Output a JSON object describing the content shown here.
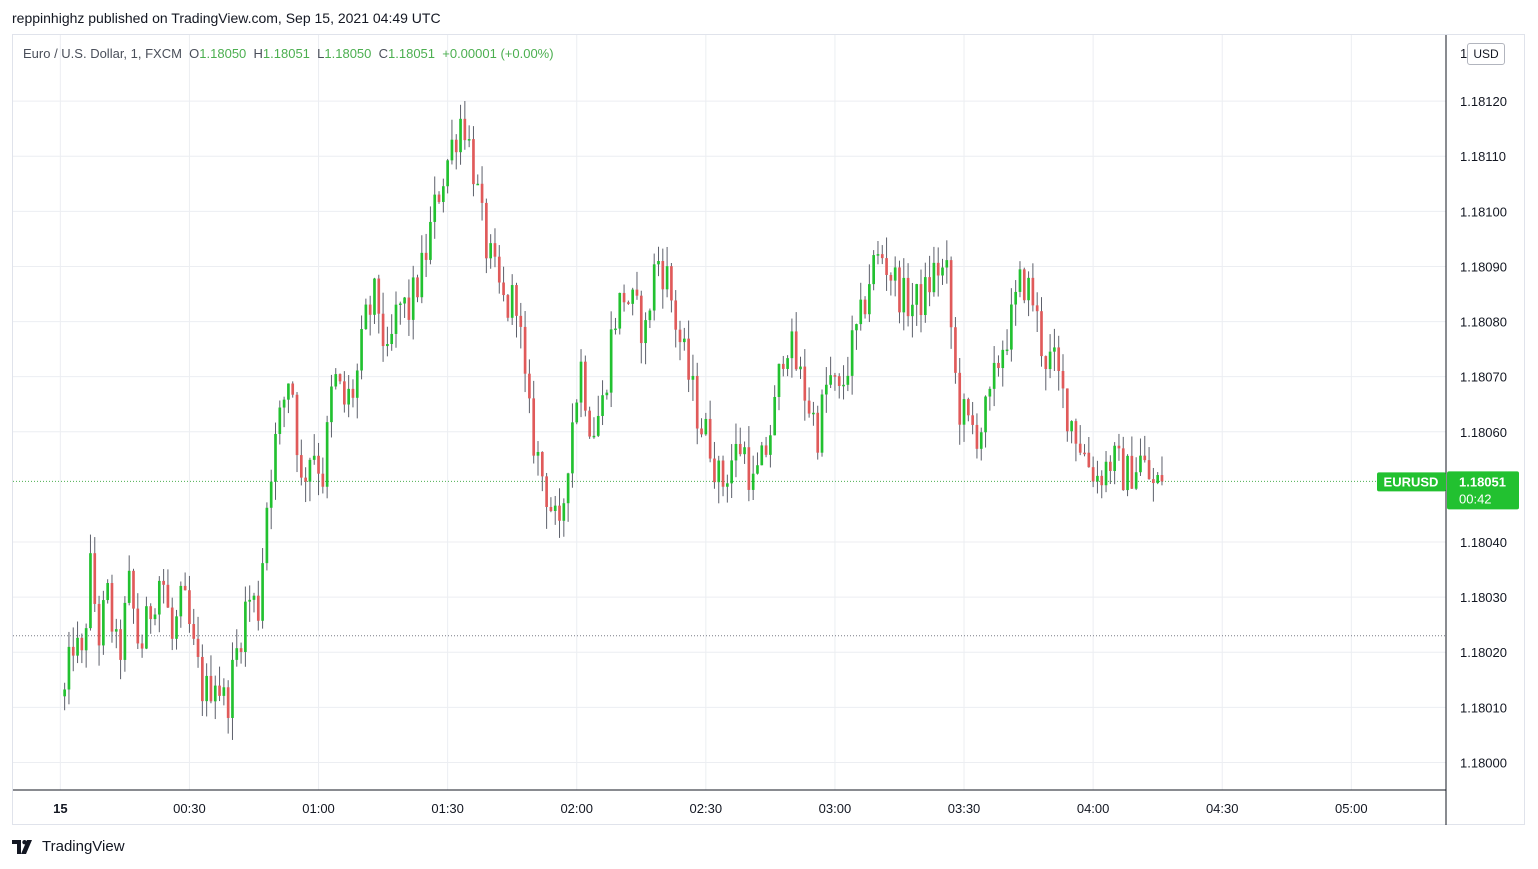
{
  "header": {
    "publisher_line": "reppinhighz published on TradingView.com, Sep 15, 2021 04:49 UTC"
  },
  "legend": {
    "symbol": "Euro / U.S. Dollar, 1, FXCM",
    "open_label": "O",
    "open": "1.18050",
    "high_label": "H",
    "high": "1.18051",
    "low_label": "L",
    "low": "1.18050",
    "close_label": "C",
    "close": "1.18051",
    "change": "+0.00001 (+0.00%)"
  },
  "currency_badge": "USD",
  "top_axis_partial_label": "1",
  "price_tag": {
    "symbol": "EURUSD",
    "price": "1.18051",
    "countdown": "00:42",
    "color": "#22c130"
  },
  "footer": {
    "brand": "TradingView"
  },
  "colors": {
    "up": "#22c130",
    "down": "#e05a5a",
    "grid": "#eceef2",
    "last_price_line": "#4caf50",
    "prev_close_line": "#787b86"
  },
  "chart_data": {
    "type": "candlestick",
    "symbol": "EURUSD",
    "interval": "1",
    "x_tick_labels": [
      "15",
      "00:30",
      "01:00",
      "01:30",
      "02:00",
      "02:30",
      "03:00",
      "03:30",
      "04:00",
      "04:30",
      "05:00"
    ],
    "y_tick_labels": [
      "1.18000",
      "1.18010",
      "1.18020",
      "1.18030",
      "1.18040",
      "1.18060",
      "1.18070",
      "1.18080",
      "1.18090",
      "1.18100",
      "1.18110",
      "1.18120"
    ],
    "y_range": [
      1.17995,
      1.18132
    ],
    "x_range_minutes": [
      -11,
      322
    ],
    "last_price": 1.18051,
    "previous_close_level": 1.18023,
    "grid": true,
    "segments": [
      {
        "from_minute": 0,
        "to_minute": 10,
        "points": [
          1.18012,
          1.18022,
          1.18018,
          1.18035,
          1.18023,
          1.1803
        ]
      },
      {
        "from_minute": 10,
        "to_minute": 20,
        "points": [
          1.1803,
          1.18018,
          1.18032,
          1.1802,
          1.18028
        ]
      },
      {
        "from_minute": 20,
        "to_minute": 30,
        "points": [
          1.18028,
          1.18035,
          1.18022,
          1.1803,
          1.1802
        ]
      },
      {
        "from_minute": 30,
        "to_minute": 40,
        "points": [
          1.1802,
          1.18012,
          1.18016,
          1.1801,
          1.1802
        ]
      },
      {
        "from_minute": 40,
        "to_minute": 50,
        "points": [
          1.1802,
          1.1803,
          1.18028,
          1.18052,
          1.18062
        ]
      },
      {
        "from_minute": 50,
        "to_minute": 60,
        "points": [
          1.18062,
          1.18072,
          1.1805,
          1.18058,
          1.18052
        ]
      },
      {
        "from_minute": 60,
        "to_minute": 70,
        "points": [
          1.18052,
          1.1807,
          1.18065,
          1.18068,
          1.1808
        ]
      },
      {
        "from_minute": 70,
        "to_minute": 80,
        "points": [
          1.1808,
          1.18085,
          1.18072,
          1.18083,
          1.18082
        ]
      },
      {
        "from_minute": 80,
        "to_minute": 90,
        "points": [
          1.18082,
          1.1809,
          1.18103,
          1.18112
        ]
      },
      {
        "from_minute": 90,
        "to_minute": 100,
        "points": [
          1.18112,
          1.18118,
          1.18108,
          1.18095,
          1.18088
        ]
      },
      {
        "from_minute": 100,
        "to_minute": 110,
        "points": [
          1.18088,
          1.18082,
          1.18085,
          1.18064,
          1.18055
        ]
      },
      {
        "from_minute": 110,
        "to_minute": 120,
        "points": [
          1.18055,
          1.18048,
          1.1804,
          1.1806,
          1.18072
        ]
      },
      {
        "from_minute": 120,
        "to_minute": 130,
        "points": [
          1.18072,
          1.1806,
          1.18065,
          1.1808,
          1.18085
        ]
      },
      {
        "from_minute": 130,
        "to_minute": 140,
        "points": [
          1.18085,
          1.18082,
          1.18078,
          1.18092,
          1.18088
        ]
      },
      {
        "from_minute": 140,
        "to_minute": 150,
        "points": [
          1.18088,
          1.18078,
          1.1807,
          1.18062,
          1.18058
        ]
      },
      {
        "from_minute": 150,
        "to_minute": 160,
        "points": [
          1.18058,
          1.1805,
          1.18055,
          1.18058,
          1.1805
        ]
      },
      {
        "from_minute": 160,
        "to_minute": 170,
        "points": [
          1.1805,
          1.18055,
          1.18064,
          1.18078,
          1.18072
        ]
      },
      {
        "from_minute": 170,
        "to_minute": 180,
        "points": [
          1.18072,
          1.18066,
          1.1806,
          1.1807,
          1.18066
        ]
      },
      {
        "from_minute": 180,
        "to_minute": 190,
        "points": [
          1.18066,
          1.18074,
          1.1808,
          1.1809,
          1.18092
        ]
      },
      {
        "from_minute": 190,
        "to_minute": 200,
        "points": [
          1.18092,
          1.18088,
          1.18084,
          1.18083,
          1.18085
        ]
      },
      {
        "from_minute": 200,
        "to_minute": 210,
        "points": [
          1.18085,
          1.1809,
          1.18088,
          1.18065,
          1.18061
        ]
      },
      {
        "from_minute": 210,
        "to_minute": 220,
        "points": [
          1.18061,
          1.1806,
          1.18065,
          1.18075,
          1.1808
        ]
      },
      {
        "from_minute": 220,
        "to_minute": 230,
        "points": [
          1.1808,
          1.18088,
          1.18084,
          1.18074,
          1.18072
        ]
      },
      {
        "from_minute": 230,
        "to_minute": 240,
        "points": [
          1.18072,
          1.18065,
          1.1806,
          1.18055,
          1.18052
        ]
      },
      {
        "from_minute": 240,
        "to_minute": 250,
        "points": [
          1.18052,
          1.18055,
          1.18052,
          1.18055
        ]
      },
      {
        "from_minute": 250,
        "to_minute": 256,
        "points": [
          1.18055,
          1.1805,
          1.18051
        ]
      }
    ]
  }
}
